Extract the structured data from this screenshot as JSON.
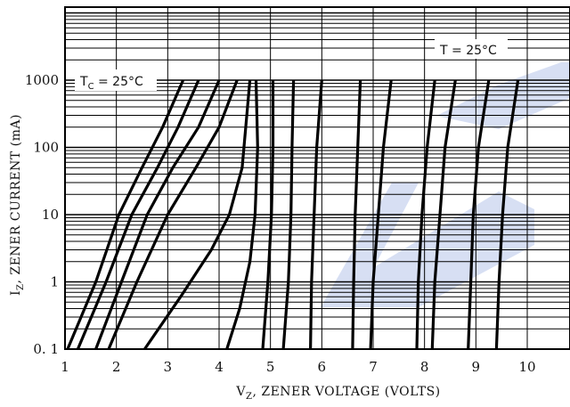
{
  "chart_data": {
    "type": "line",
    "title": "",
    "xlabel": "VZ, ZENER VOLTAGE (VOLTS)",
    "ylabel": "IZ, ZENER CURRENT (mA)",
    "xlabel_parts": {
      "sym": "V",
      "sub": "Z",
      "rest": ", ZENER VOLTAGE (VOLTS)"
    },
    "ylabel_parts": {
      "sym": "I",
      "sub": "Z",
      "rest": ", ZENER CURRENT (mA)"
    },
    "xlim": [
      1,
      11
    ],
    "ylim": [
      0.1,
      10000
    ],
    "y_scale": "log",
    "grid": true,
    "x_ticks": [
      1,
      2,
      3,
      4,
      5,
      6,
      7,
      8,
      9,
      10
    ],
    "x_tick_labels": [
      "1",
      "2",
      "3",
      "4",
      "5",
      "6",
      "7",
      "8",
      "9",
      "10"
    ],
    "y_ticks": [
      0.1,
      1,
      10,
      100,
      1000
    ],
    "y_tick_labels": [
      "0. 1",
      "1",
      "10",
      "100",
      "1000"
    ],
    "annotations": [
      {
        "parts": {
          "sym": "T",
          "sub": "C",
          "rest": " = 25°C"
        },
        "text": "TC = 25°C",
        "position": "upper-left"
      },
      {
        "parts": {
          "sym": "T",
          "sub": "",
          "rest": " = 25°C"
        },
        "text": "T = 25°C",
        "position": "upper-right"
      }
    ],
    "series": [
      {
        "x": [
          1.05,
          1.6,
          2.05,
          2.5,
          2.9,
          3.3
        ],
        "y": [
          0.1,
          1,
          10,
          50,
          200,
          1000
        ]
      },
      {
        "x": [
          1.25,
          1.8,
          2.3,
          2.8,
          3.2,
          3.6
        ],
        "y": [
          0.1,
          1,
          10,
          50,
          200,
          1000
        ]
      },
      {
        "x": [
          1.6,
          2.1,
          2.6,
          3.1,
          3.6,
          4.0
        ],
        "y": [
          0.1,
          1,
          10,
          50,
          200,
          1000
        ]
      },
      {
        "x": [
          1.85,
          2.4,
          3.0,
          3.55,
          4.0,
          4.35
        ],
        "y": [
          0.1,
          1,
          10,
          50,
          200,
          1000
        ]
      },
      {
        "x": [
          2.55,
          3.25,
          3.85,
          4.2,
          4.45,
          4.6
        ],
        "y": [
          0.1,
          0.6,
          3,
          10,
          50,
          1000
        ]
      },
      {
        "x": [
          4.15,
          4.4,
          4.6,
          4.7,
          4.75,
          4.72
        ],
        "y": [
          0.1,
          0.4,
          2,
          10,
          100,
          1000
        ]
      },
      {
        "x": [
          4.85,
          4.95,
          5.02,
          5.05,
          5.05
        ],
        "y": [
          0.1,
          1,
          10,
          100,
          1000
        ]
      },
      {
        "x": [
          5.25,
          5.35,
          5.4,
          5.42,
          5.45
        ],
        "y": [
          0.1,
          1,
          10,
          100,
          1000
        ]
      },
      {
        "x": [
          5.78,
          5.8,
          5.85,
          5.9,
          6.0
        ],
        "y": [
          0.1,
          1,
          10,
          100,
          1000
        ]
      },
      {
        "x": [
          6.6,
          6.62,
          6.65,
          6.7,
          6.75
        ],
        "y": [
          0.1,
          1,
          10,
          100,
          1000
        ]
      },
      {
        "x": [
          6.95,
          7.0,
          7.1,
          7.2,
          7.35
        ],
        "y": [
          0.1,
          1,
          10,
          100,
          1000
        ]
      },
      {
        "x": [
          7.85,
          7.88,
          7.95,
          8.05,
          8.2
        ],
        "y": [
          0.1,
          1,
          10,
          100,
          1000
        ]
      },
      {
        "x": [
          8.15,
          8.2,
          8.3,
          8.4,
          8.6
        ],
        "y": [
          0.1,
          1,
          10,
          100,
          1000
        ]
      },
      {
        "x": [
          8.85,
          8.9,
          8.95,
          9.05,
          9.25
        ],
        "y": [
          0.1,
          1,
          10,
          100,
          1000
        ]
      },
      {
        "x": [
          9.4,
          9.45,
          9.52,
          9.62,
          9.82
        ],
        "y": [
          0.1,
          1,
          10,
          100,
          1000
        ]
      }
    ],
    "line_color": "#000000",
    "grid_color": "#000000",
    "watermark_color": "#c9d4ef"
  }
}
